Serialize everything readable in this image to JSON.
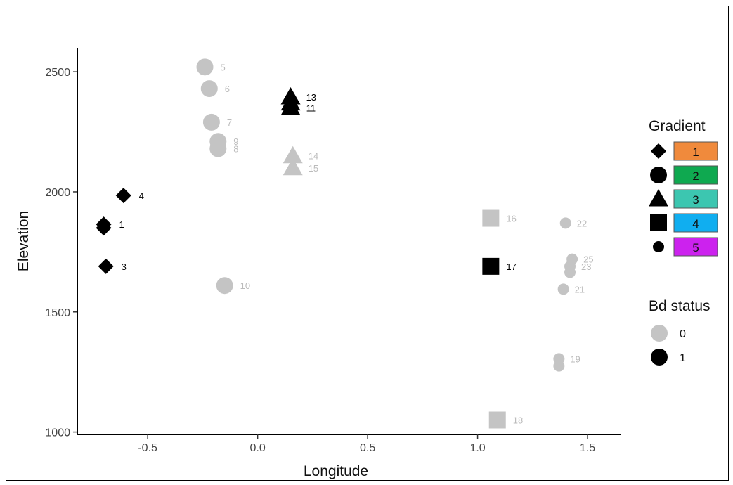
{
  "chart_data": {
    "type": "scatter",
    "xlabel": "Longitude",
    "ylabel": "Elevation",
    "xlim": [
      -0.82,
      1.65
    ],
    "ylim": [
      990,
      2600
    ],
    "xticks": [
      -0.5,
      0.0,
      0.5,
      1.0,
      1.5
    ],
    "xtick_labels": [
      "-0.5",
      "0.0",
      "0.5",
      "1.0",
      "1.5"
    ],
    "yticks": [
      1000,
      1500,
      2000,
      2500
    ],
    "ytick_labels": [
      "1000",
      "1500",
      "2000",
      "2500"
    ],
    "grid": false,
    "points": [
      {
        "label": "1",
        "x": -0.7,
        "y": 1865,
        "gradient": 1,
        "bd": 1
      },
      {
        "label": "",
        "x": -0.7,
        "y": 1850,
        "gradient": 1,
        "bd": 1
      },
      {
        "label": "3",
        "x": -0.69,
        "y": 1690,
        "gradient": 1,
        "bd": 1
      },
      {
        "label": "4",
        "x": -0.61,
        "y": 1985,
        "gradient": 1,
        "bd": 1
      },
      {
        "label": "5",
        "x": -0.24,
        "y": 2520,
        "gradient": 2,
        "bd": 0
      },
      {
        "label": "6",
        "x": -0.22,
        "y": 2430,
        "gradient": 2,
        "bd": 0
      },
      {
        "label": "7",
        "x": -0.21,
        "y": 2290,
        "gradient": 2,
        "bd": 0
      },
      {
        "label": "9",
        "x": -0.18,
        "y": 2210,
        "gradient": 2,
        "bd": 0
      },
      {
        "label": "8",
        "x": -0.18,
        "y": 2180,
        "gradient": 2,
        "bd": 0
      },
      {
        "label": "10",
        "x": -0.15,
        "y": 1610,
        "gradient": 2,
        "bd": 0
      },
      {
        "label": "13",
        "x": 0.15,
        "y": 2395,
        "gradient": 3,
        "bd": 1
      },
      {
        "label": "",
        "x": 0.15,
        "y": 2370,
        "gradient": 3,
        "bd": 1
      },
      {
        "label": "11",
        "x": 0.15,
        "y": 2350,
        "gradient": 3,
        "bd": 1
      },
      {
        "label": "14",
        "x": 0.16,
        "y": 2150,
        "gradient": 3,
        "bd": 0
      },
      {
        "label": "15",
        "x": 0.16,
        "y": 2100,
        "gradient": 3,
        "bd": 0
      },
      {
        "label": "16",
        "x": 1.06,
        "y": 1890,
        "gradient": 4,
        "bd": 0
      },
      {
        "label": "17",
        "x": 1.06,
        "y": 1690,
        "gradient": 4,
        "bd": 1
      },
      {
        "label": "18",
        "x": 1.09,
        "y": 1050,
        "gradient": 4,
        "bd": 0
      },
      {
        "label": "22",
        "x": 1.4,
        "y": 1870,
        "gradient": 5,
        "bd": 0
      },
      {
        "label": "25",
        "x": 1.43,
        "y": 1720,
        "gradient": 5,
        "bd": 0
      },
      {
        "label": "23",
        "x": 1.42,
        "y": 1690,
        "gradient": 5,
        "bd": 0
      },
      {
        "label": "",
        "x": 1.42,
        "y": 1665,
        "gradient": 5,
        "bd": 0
      },
      {
        "label": "21",
        "x": 1.39,
        "y": 1595,
        "gradient": 5,
        "bd": 0
      },
      {
        "label": "19",
        "x": 1.37,
        "y": 1305,
        "gradient": 5,
        "bd": 0
      },
      {
        "label": "",
        "x": 1.37,
        "y": 1275,
        "gradient": 5,
        "bd": 0
      }
    ],
    "legend": {
      "gradient": {
        "title": "Gradient",
        "items": [
          {
            "label": "1",
            "shape": "diamond",
            "color": "#f08a3c"
          },
          {
            "label": "2",
            "shape": "circle",
            "color": "#0fa950"
          },
          {
            "label": "3",
            "shape": "triangle",
            "color": "#3cc6b0"
          },
          {
            "label": "4",
            "shape": "square",
            "color": "#10aef0"
          },
          {
            "label": "5",
            "shape": "small-circle",
            "color": "#cc22ee"
          }
        ]
      },
      "bd": {
        "title": "Bd status",
        "items": [
          {
            "label": "0",
            "color": "#c4c4c4"
          },
          {
            "label": "1",
            "color": "#000000"
          }
        ]
      },
      "placement": "right"
    },
    "colors": {
      "bd0": "#c4c4c4",
      "bd1": "#000000",
      "bd0_label": "#bbbbbb",
      "bd1_label": "#000000"
    }
  }
}
